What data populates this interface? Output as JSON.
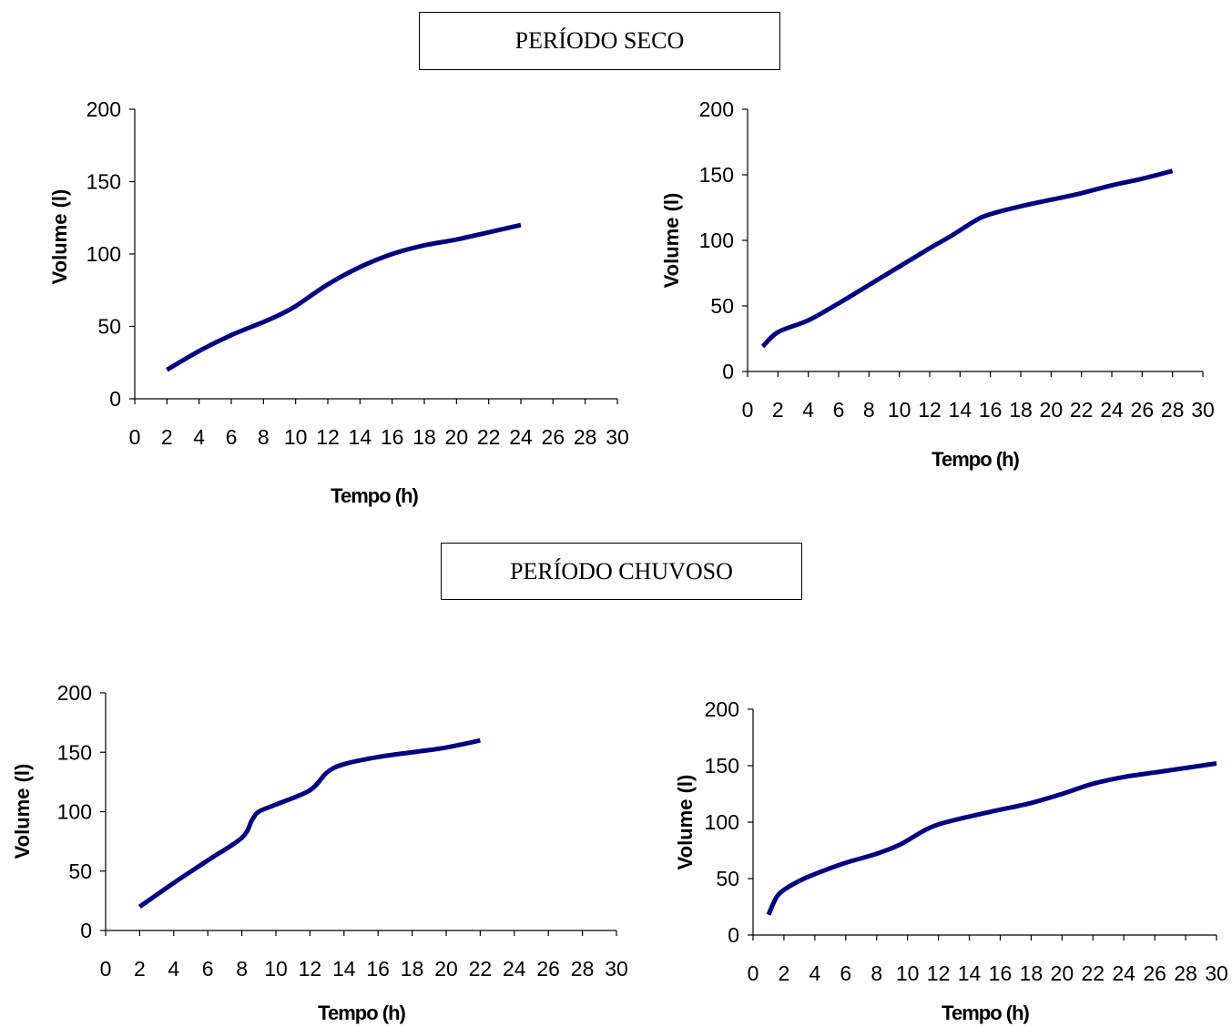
{
  "sections": {
    "dry_label": "PERÍODO SECO",
    "rainy_label": "PERÍODO CHUVOSO"
  },
  "chart_data": [
    {
      "type": "line",
      "section": "PERÍODO SECO",
      "xlabel": "Tempo (h)",
      "ylabel": "Volume (l)",
      "xlim": [
        0,
        30
      ],
      "ylim": [
        0,
        200
      ],
      "xticks": [
        0,
        2,
        4,
        6,
        8,
        10,
        12,
        14,
        16,
        18,
        20,
        22,
        24,
        26,
        28,
        30
      ],
      "yticks": [
        0,
        50,
        100,
        150,
        200
      ],
      "color": "#000080",
      "series": [
        {
          "x": [
            2,
            4,
            6,
            8,
            9,
            10,
            12,
            14,
            16,
            18,
            20,
            22,
            24
          ],
          "y": [
            20,
            33,
            44,
            53,
            58,
            64,
            79,
            91,
            100,
            106,
            110,
            115,
            120
          ]
        }
      ]
    },
    {
      "type": "line",
      "section": "PERÍODO SECO",
      "xlabel": "Tempo (h)",
      "ylabel": "Volume (l)",
      "xlim": [
        0,
        30
      ],
      "ylim": [
        0,
        200
      ],
      "xticks": [
        0,
        2,
        4,
        6,
        8,
        10,
        12,
        14,
        16,
        18,
        20,
        22,
        24,
        26,
        28,
        30
      ],
      "yticks": [
        0,
        50,
        100,
        150,
        200
      ],
      "color": "#000080",
      "series": [
        {
          "x": [
            1,
            2,
            4,
            6,
            8,
            10,
            12,
            13.5,
            15,
            16,
            18,
            20,
            22,
            24,
            26,
            28
          ],
          "y": [
            19,
            30,
            39,
            52,
            66,
            80,
            94,
            104,
            115,
            120,
            126,
            131,
            136,
            142,
            147,
            153
          ]
        }
      ]
    },
    {
      "type": "line",
      "section": "PERÍODO CHUVOSO",
      "xlabel": "Tempo (h)",
      "ylabel": "Volume (l)",
      "xlim": [
        0,
        30
      ],
      "ylim": [
        0,
        200
      ],
      "xticks": [
        0,
        2,
        4,
        6,
        8,
        10,
        12,
        14,
        16,
        18,
        20,
        22,
        24,
        26,
        28,
        30
      ],
      "yticks": [
        0,
        50,
        100,
        150,
        200
      ],
      "color": "#000080",
      "series": [
        {
          "x": [
            2,
            4,
            6,
            8,
            8.6,
            9,
            10,
            12,
            13,
            14,
            16,
            18,
            20,
            22
          ],
          "y": [
            20,
            40,
            59,
            78,
            93,
            100,
            106,
            118,
            133,
            140,
            146,
            150,
            154,
            160
          ]
        }
      ]
    },
    {
      "type": "line",
      "section": "PERÍODO CHUVOSO",
      "xlabel": "Tempo (h)",
      "ylabel": "Volume (l)",
      "xlim": [
        0,
        30
      ],
      "ylim": [
        0,
        200
      ],
      "xticks": [
        0,
        2,
        4,
        6,
        8,
        10,
        12,
        14,
        16,
        18,
        20,
        22,
        24,
        26,
        28,
        30
      ],
      "yticks": [
        0,
        50,
        100,
        150,
        200
      ],
      "color": "#000080",
      "series": [
        {
          "x": [
            1,
            1.5,
            2,
            3,
            4,
            6,
            8,
            9.5,
            11,
            12,
            14,
            16,
            18,
            20,
            22,
            24,
            26,
            28,
            30
          ],
          "y": [
            18,
            33,
            40,
            48,
            54,
            64,
            72,
            80,
            92,
            98,
            105,
            111,
            117,
            125,
            134,
            140,
            144,
            148,
            152
          ]
        }
      ]
    }
  ]
}
